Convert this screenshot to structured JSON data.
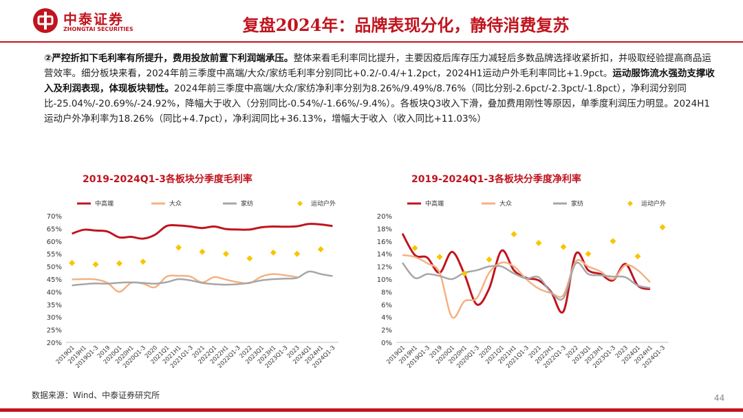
{
  "header": {
    "logo_cn": "中泰证券",
    "logo_en": "ZHONGTAI SECURITIES",
    "title": "复盘2024年：品牌表现分化，静待消费复苏"
  },
  "body": {
    "seg1_bold": "②严控折扣下毛利率有所提升，费用投放前置下利润端承压。",
    "seg2": "整体来看毛利率同比提升，主要因疫后库存压力减轻后多数品牌选择收紧折扣，并吸取经验提高商品运营效率。细分板块来看，2024年前三季度中高端/大众/家纺毛利率分别同比+0.2/-0.4/+1.2pct，2024H1运动户外毛利率同比+1.9pct。",
    "seg3_bold": "运动服饰流水强劲支撑收入及利润表现，体现板块韧性。",
    "seg4": "2024年前三季度中高端/大众/家纺净利率分别为8.26%/9.49%/8.76%（同比分别-2.6pct/-2.3pct/-1.8pct），净利润分别同比-25.04%/-20.69%/-24.92%，降幅大于收入（分别同比-0.54%/-1.66%/-9.4%）。各板块Q3收入下滑，叠加费用刚性等原因，单季度利润压力明显。2024H1运动户外净利率为18.26%（同比+4.7pct），净利润同比+36.13%，增幅大于收入（收入同比+11.03%）"
  },
  "footer": {
    "source": "数据来源：Wind、中泰证券研究所",
    "page": "44"
  },
  "colors": {
    "brand": "#c0141e",
    "s1": "#c0141e",
    "s2": "#f4b183",
    "s3": "#a6a6a6",
    "s4": "#f7c600"
  },
  "chart_data": [
    {
      "type": "line",
      "title": "2019-2024Q1-3各板块分季度毛利率",
      "x": [
        "2019Q1",
        "2019H1",
        "2019Q1-3",
        "2019",
        "2020Q1",
        "2020H1",
        "2020Q1-3",
        "2020",
        "2021Q1",
        "2021H1",
        "2021Q1-3",
        "2021",
        "2022Q1",
        "2022H1",
        "2022Q1-3",
        "2022",
        "2023Q1",
        "2023H1",
        "2023Q1-3",
        "2023",
        "2024Q1",
        "2024H1",
        "2024Q1-3"
      ],
      "yticks": [
        "20%",
        "25%",
        "30%",
        "35%",
        "40%",
        "45%",
        "50%",
        "55%",
        "60%",
        "65%",
        "70%"
      ],
      "ylim": [
        20,
        70
      ],
      "legend": [
        "中高端",
        "大众",
        "家纺",
        "运动户外"
      ],
      "series": [
        {
          "name": "中高端",
          "style": "line",
          "values": [
            63.0,
            64.5,
            64.2,
            63.8,
            61.5,
            61.7,
            61.0,
            62.5,
            66.0,
            66.2,
            65.8,
            65.2,
            65.8,
            64.8,
            64.6,
            64.6,
            65.5,
            65.8,
            65.7,
            65.9,
            66.8,
            66.6,
            66.0
          ]
        },
        {
          "name": "大众",
          "style": "line",
          "values": [
            44.9,
            45.0,
            44.9,
            43.5,
            40.0,
            43.5,
            43.2,
            41.8,
            46.0,
            46.3,
            46.0,
            43.7,
            45.8,
            44.8,
            43.8,
            43.4,
            46.0,
            47.0,
            46.5,
            45.8,
            null,
            null,
            null
          ]
        },
        {
          "name": "家纺",
          "style": "line",
          "values": [
            42.5,
            43.0,
            43.3,
            43.2,
            43.6,
            43.7,
            43.5,
            43.2,
            43.8,
            45.0,
            44.5,
            43.5,
            43.0,
            42.8,
            43.0,
            43.6,
            44.5,
            45.0,
            45.2,
            45.5,
            48.0,
            47.0,
            46.2
          ]
        },
        {
          "name": "运动户外",
          "style": "marker",
          "values": [
            51.4,
            null,
            50.8,
            null,
            51.2,
            null,
            51.9,
            null,
            null,
            57.5,
            null,
            55.8,
            null,
            55.0,
            null,
            53.2,
            null,
            55.5,
            null,
            55.0,
            null,
            56.8,
            null
          ]
        }
      ]
    },
    {
      "type": "line",
      "title": "2019-2024Q1-3各板块分季度净利率",
      "x": [
        "2019Q1",
        "2019H1",
        "2019Q1-3",
        "2019",
        "2020Q1",
        "2020H1",
        "2020Q1-3",
        "2020",
        "2021Q1",
        "2021H1",
        "2021Q1-3",
        "2021",
        "2022H1",
        "2022Q1-3",
        "2022",
        "2023Q1",
        "2023H1",
        "2023Q1-3",
        "2023",
        "2024Q1",
        "2024H1",
        "2024Q1-3"
      ],
      "yticks": [
        "0%",
        "2%",
        "4%",
        "6%",
        "8%",
        "10%",
        "12%",
        "14%",
        "16%",
        "18%",
        "20%"
      ],
      "ylim": [
        0,
        20
      ],
      "legend": [
        "中高端",
        "大众",
        "家纺",
        "运动户外"
      ],
      "series": [
        {
          "name": "中高端",
          "style": "line",
          "values": [
            17.2,
            13.8,
            13.4,
            11.0,
            14.3,
            10.8,
            6.0,
            8.5,
            14.5,
            11.4,
            10.2,
            9.8,
            8.0,
            4.9,
            14.0,
            11.4,
            10.8,
            9.8,
            12.4,
            9.0,
            8.4,
            null
          ]
        },
        {
          "name": "大众",
          "style": "line",
          "values": [
            13.8,
            13.5,
            12.5,
            11.0,
            4.0,
            6.5,
            7.0,
            11.0,
            12.6,
            12.0,
            10.0,
            8.5,
            7.8,
            7.5,
            12.8,
            12.0,
            11.2,
            10.0,
            12.2,
            11.4,
            9.5,
            null
          ]
        },
        {
          "name": "家纺",
          "style": "line",
          "values": [
            12.6,
            10.2,
            10.8,
            10.5,
            10.0,
            11.0,
            11.4,
            12.0,
            12.0,
            10.9,
            10.1,
            10.3,
            7.9,
            7.0,
            12.5,
            10.8,
            10.6,
            10.4,
            10.3,
            9.0,
            8.6,
            null
          ]
        },
        {
          "name": "运动户外",
          "style": "marker",
          "values": [
            null,
            14.9,
            null,
            13.5,
            null,
            10.9,
            null,
            13.1,
            null,
            17.1,
            null,
            15.7,
            null,
            15.1,
            null,
            14.0,
            null,
            16.0,
            null,
            13.6,
            null,
            18.2
          ]
        }
      ]
    }
  ]
}
